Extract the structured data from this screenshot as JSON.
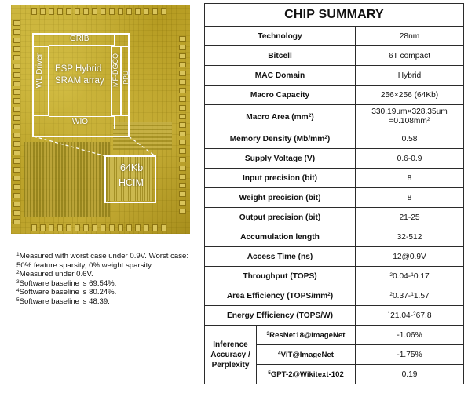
{
  "die_photo": {
    "labels": {
      "grib": "GRIB",
      "wl_driver": "WL Driver",
      "array_line1": "ESP Hybrid",
      "array_line2": "SRAM array",
      "mf_dgcq": "MF-DGCQ",
      "ppu": "PPU",
      "wio": "WIO",
      "hcim_line1": "64Kb",
      "hcim_line2": "HCIM"
    }
  },
  "footnotes": [
    {
      "sup": "1",
      "text": "Measured with worst case under 0.9V. Worst case: 50% feature sparsity, 0% weight sparsity."
    },
    {
      "sup": "2",
      "text": "Measured under 0.6V."
    },
    {
      "sup": "3",
      "text": "Software baseline is 69.54%."
    },
    {
      "sup": "4",
      "text": "Software baseline is 80.24%."
    },
    {
      "sup": "5",
      "text": "Software baseline is 48.39."
    }
  ],
  "summary": {
    "title": "CHIP SUMMARY",
    "rows": [
      {
        "label": "Technology",
        "value": "28nm"
      },
      {
        "label": "Bitcell",
        "value": "6T compact"
      },
      {
        "label": "MAC Domain",
        "value": "Hybrid"
      },
      {
        "label": "Macro Capacity",
        "value": "256×256 (64Kb)"
      },
      {
        "label": "Macro Area (mm",
        "label_sup": "2",
        "label_tail": ")",
        "value_line1": "330.19um×328.35um",
        "value_line2": "=0.108mm",
        "value_line2_sup": "2"
      },
      {
        "label": "Memory Density (Mb/mm",
        "label_sup": "2",
        "label_tail": ")",
        "value": "0.58"
      },
      {
        "label": "Supply Voltage (V)",
        "value": "0.6-0.9"
      },
      {
        "label": "Input precision (bit)",
        "value": "8"
      },
      {
        "label": "Weight precision (bit)",
        "value": "8"
      },
      {
        "label": "Output precision (bit)",
        "value": "21-25"
      },
      {
        "label": "Accumulation length",
        "value": "32-512"
      },
      {
        "label": "Access Time (ns)",
        "value": "12@0.9V"
      },
      {
        "label": "Throughput (TOPS)",
        "v_sup1": "2",
        "v_a": "0.04-",
        "v_sup2": "1",
        "v_b": "0.17"
      },
      {
        "label": "Area Efficiency (TOPS/mm",
        "label_sup": "2",
        "label_tail": ")",
        "v_sup1": "2",
        "v_a": "0.37-",
        "v_sup2": "1",
        "v_b": "1.57"
      },
      {
        "label": "Energy Efficiency (TOPS/W)",
        "v_sup1": "1",
        "v_a": "21.04-",
        "v_sup2": "2",
        "v_b": "67.8"
      }
    ],
    "inference": {
      "label_line1": "Inference",
      "label_line2": "Accuracy /",
      "label_line3": "Perplexity",
      "items": [
        {
          "sup": "3",
          "task": "ResNet18@ImageNet",
          "value": "-1.06%"
        },
        {
          "sup": "4",
          "task": "ViT@ImageNet",
          "value": "-1.75%"
        },
        {
          "sup": "5",
          "task": "GPT-2@Wikitext-102",
          "value": "0.19"
        }
      ]
    }
  }
}
